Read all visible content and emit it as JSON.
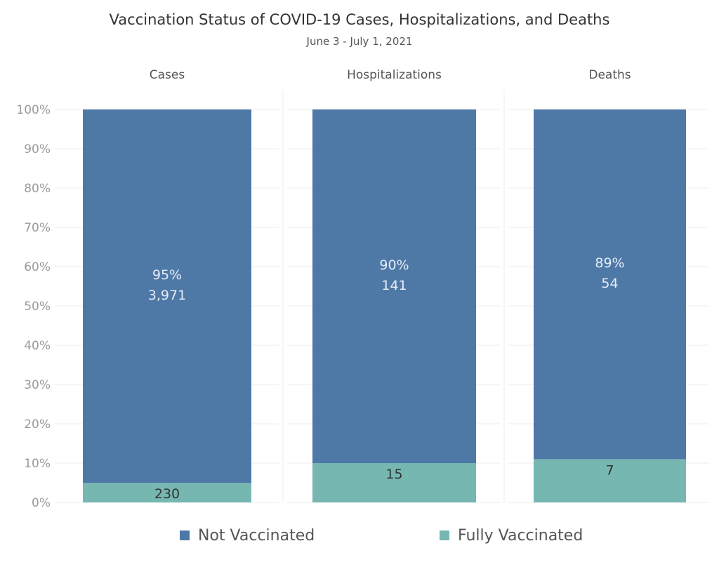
{
  "title": "Vaccination Status of COVID-19 Cases, Hospitalizations, and Deaths",
  "subtitle": "June 3 - July 1, 2021",
  "legend": [
    {
      "label": "Not Vaccinated",
      "color": "#4e79a7"
    },
    {
      "label": "Fully Vaccinated",
      "color": "#76b7b2"
    }
  ],
  "chart_data": {
    "type": "bar",
    "stacked": true,
    "normalized": true,
    "title": "Vaccination Status of COVID-19 Cases, Hospitalizations, and Deaths",
    "subtitle": "June 3 - July 1, 2021",
    "categories": [
      "Cases",
      "Hospitalizations",
      "Deaths"
    ],
    "series": [
      {
        "name": "Fully Vaccinated",
        "color": "#76b7b2",
        "percent": [
          5,
          10,
          11
        ],
        "counts": [
          230,
          15,
          7
        ],
        "percent_labels": [
          "5%",
          "10%",
          "11%"
        ],
        "count_labels": [
          "230",
          "15",
          "7"
        ]
      },
      {
        "name": "Not Vaccinated",
        "color": "#4e79a7",
        "percent": [
          95,
          90,
          89
        ],
        "counts": [
          3971,
          141,
          54
        ],
        "percent_labels": [
          "95%",
          "90%",
          "89%"
        ],
        "count_labels": [
          "3,971",
          "141",
          "54"
        ]
      }
    ],
    "y_ticks": [
      "0%",
      "10%",
      "20%",
      "30%",
      "40%",
      "50%",
      "60%",
      "70%",
      "80%",
      "90%",
      "100%"
    ],
    "ylim": [
      0,
      100
    ],
    "grid": true,
    "legend_position": "bottom"
  }
}
